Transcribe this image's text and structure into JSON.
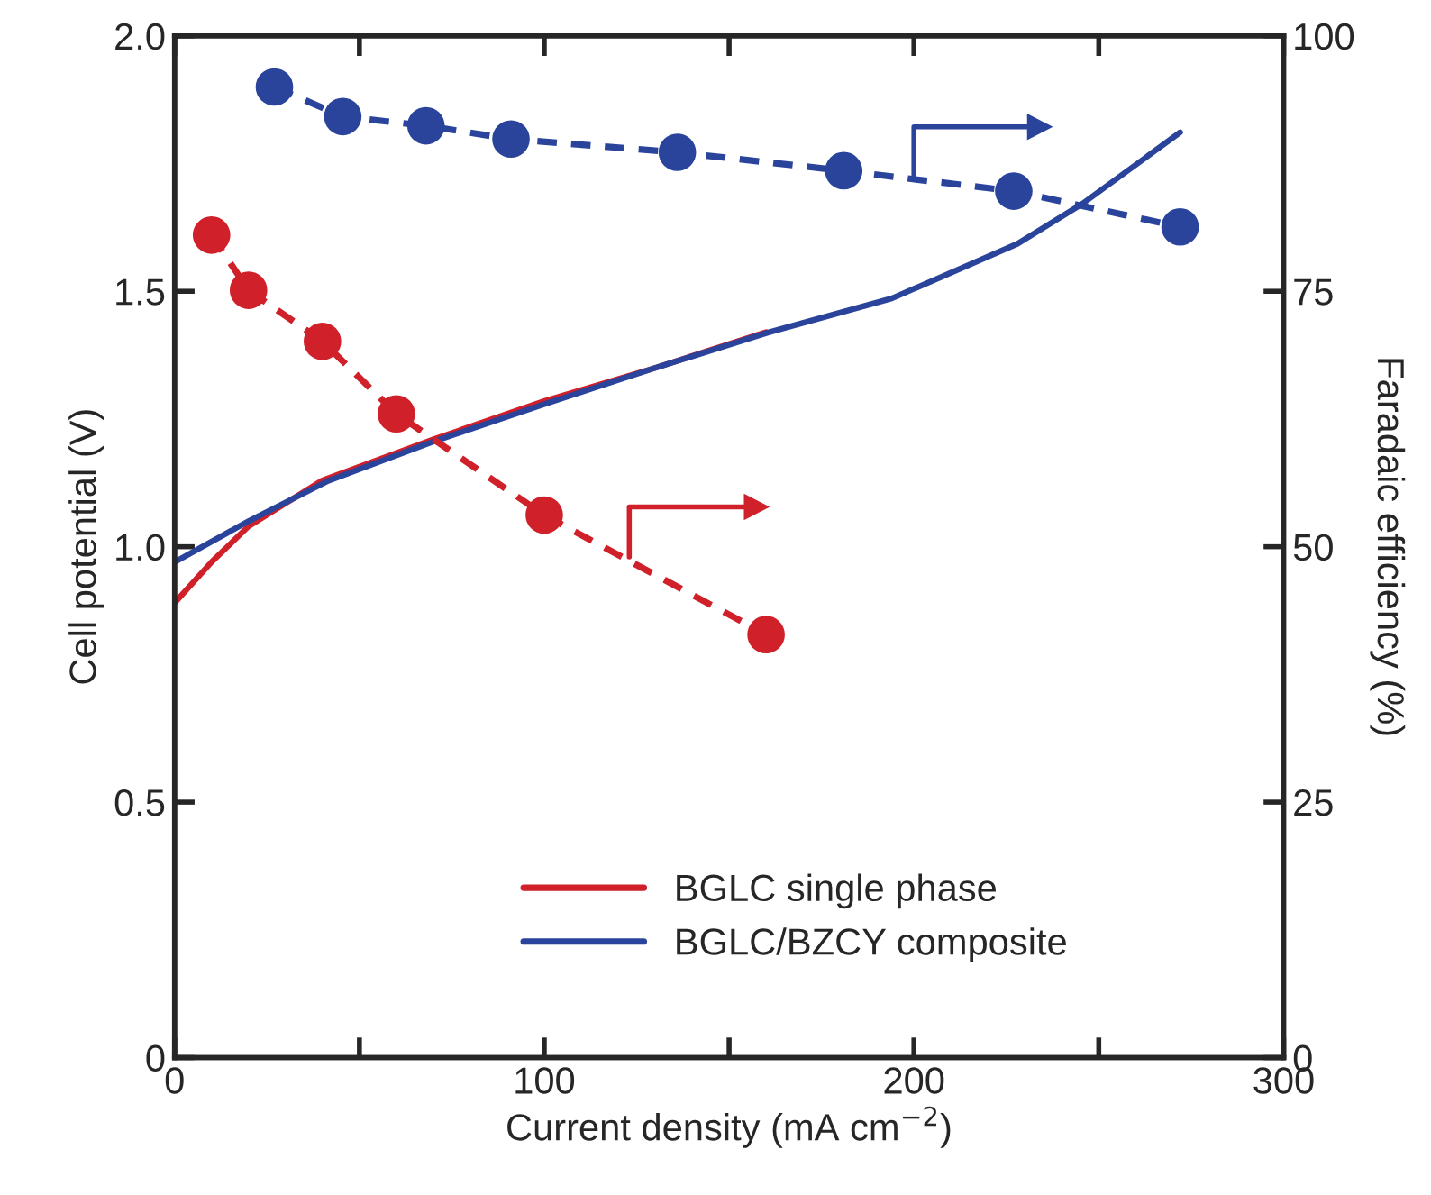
{
  "chart_data": {
    "type": "line",
    "xlabel": "Current density (mA cm$^{−2}$)",
    "ylabel": "Cell potential (V)",
    "y2label": "Faradaic efficiency (%)",
    "xlim": [
      0,
      300
    ],
    "xticks": [
      0,
      {
        "value": 50,
        "label": null
      },
      100,
      {
        "value": 150,
        "label": null
      },
      200,
      {
        "value": 250,
        "label": null
      },
      300
    ],
    "ylim": [
      0,
      2.0
    ],
    "yticks": [
      {
        "value": 0,
        "label": "0"
      },
      0.5,
      {
        "value": 1.0,
        "label": "1.0"
      },
      1.5,
      {
        "value": 2.0,
        "label": "2.0"
      }
    ],
    "y2lim": [
      0,
      100
    ],
    "y2ticks": [
      0,
      25,
      50,
      75,
      100
    ],
    "legend": "bottom",
    "grid": false,
    "series": [
      {
        "name": "BGLC single phase",
        "color": "#d0202a",
        "x": [
          0,
          10,
          20,
          40,
          70,
          100,
          130,
          160
        ],
        "values": [
          0.89,
          0.97,
          1.04,
          1.13,
          1.21,
          1.285,
          1.35,
          1.42
        ],
        "line_style": "solid",
        "marker": "none"
      },
      {
        "name": "BGLC/BZCY composite",
        "color": "#2a449c",
        "x": [
          0,
          20,
          41.6,
          69.3,
          100,
          130,
          160.4,
          194,
          228,
          245.5,
          272
        ],
        "values": [
          0.97,
          1.05,
          1.129,
          1.204,
          1.279,
          1.35,
          1.419,
          1.486,
          1.593,
          1.671,
          1.811
        ],
        "line_style": "solid",
        "marker": "none"
      },
      {
        "color": "#d0202a",
        "axis": "y2",
        "x": [
          10,
          20,
          40,
          60,
          100,
          160
        ],
        "values": [
          80.5,
          75.1,
          70.1,
          63,
          53.1,
          41.4
        ],
        "line_style": "dashed",
        "marker": "circle"
      },
      {
        "color": "#2a449c",
        "axis": "y2",
        "x": [
          27,
          45.5,
          68,
          91,
          136,
          181,
          227,
          272
        ],
        "values": [
          95,
          92.1,
          91.2,
          89.9,
          88.6,
          86.8,
          84.8,
          81.3
        ],
        "line_style": "dashed",
        "marker": "circle"
      }
    ]
  }
}
